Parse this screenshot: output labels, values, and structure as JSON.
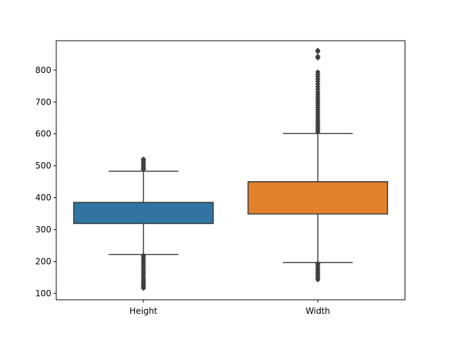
{
  "chart_data": {
    "type": "box",
    "title": "",
    "xlabel": "",
    "ylabel": "",
    "categories": [
      "Height",
      "Width"
    ],
    "ylim": [
      80,
      892
    ],
    "yticks": [
      100,
      200,
      300,
      400,
      500,
      600,
      700,
      800
    ],
    "grid": false,
    "colors": [
      "#3274a1",
      "#e1812c"
    ],
    "line_color": "#3f3f3f",
    "boxes": [
      {
        "label": "Height",
        "q1": 319,
        "median": 385,
        "q3": 385,
        "whisker_low": 222,
        "whisker_high": 483,
        "outliers": [
          116,
          120,
          124,
          128,
          133,
          138,
          143,
          148,
          154,
          160,
          166,
          172,
          178,
          184,
          190,
          196,
          202,
          208,
          214,
          219,
          488,
          492,
          497,
          502,
          507,
          512,
          517,
          521
        ]
      },
      {
        "label": "Width",
        "q1": 349,
        "median": 450,
        "q3": 450,
        "whisker_low": 197,
        "whisker_high": 601,
        "outliers": [
          143,
          148,
          154,
          160,
          166,
          172,
          178,
          184,
          190,
          194,
          606,
          612,
          618,
          624,
          630,
          636,
          642,
          648,
          655,
          662,
          669,
          676,
          683,
          690,
          697,
          704,
          711,
          718,
          725,
          732,
          740,
          748,
          756,
          764,
          772,
          780,
          787,
          794,
          838,
          843,
          858,
          862
        ]
      }
    ]
  }
}
